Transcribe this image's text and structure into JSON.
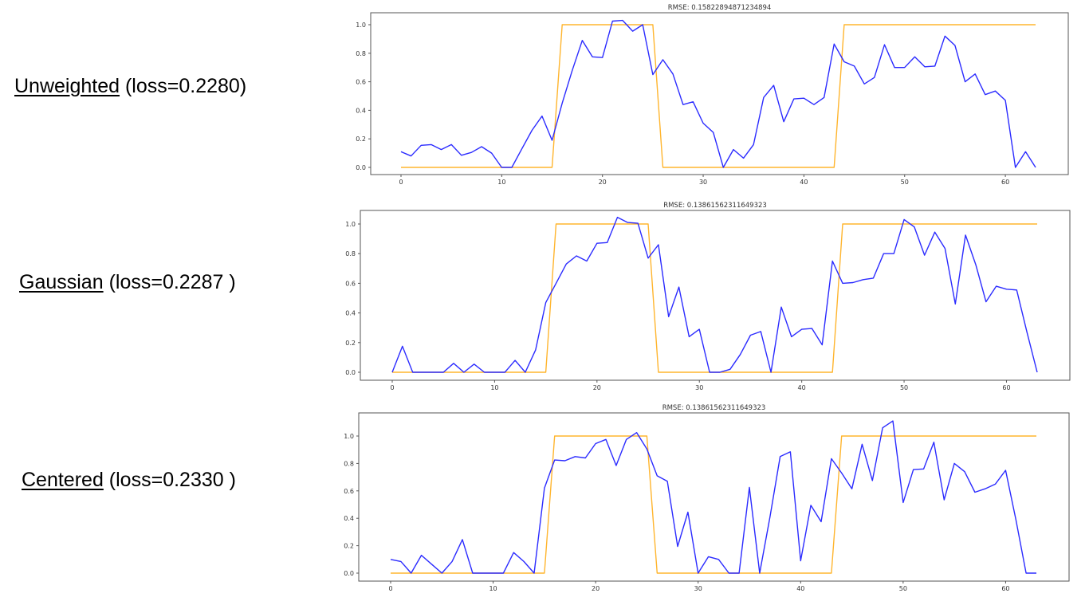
{
  "colors": {
    "predicted": "#2b2bff",
    "target": "#ffb52e",
    "axis": "#555555"
  },
  "labels": [
    {
      "name": "Unweighted",
      "suffix": " (loss=0.2280)"
    },
    {
      "name": "Gaussian",
      "suffix": " (loss=0.2287 )"
    },
    {
      "name": "Centered",
      "suffix": " (loss=0.2330 )"
    }
  ],
  "chart_data": [
    {
      "type": "line",
      "title": "RMSE: 0.15822894871234894",
      "xlabel": "",
      "ylabel": "",
      "xlim": [
        0,
        63
      ],
      "ylim": [
        0.0,
        1.04
      ],
      "xticks": [
        "0",
        "10",
        "20",
        "30",
        "40",
        "50",
        "60"
      ],
      "yticks": [
        "0.0",
        "0.2",
        "0.4",
        "0.6",
        "0.8",
        "1.0"
      ],
      "grid": false,
      "series": [
        {
          "color": "#2b2bff",
          "values": [
            0.11,
            0.08,
            0.155,
            0.16,
            0.125,
            0.16,
            0.085,
            0.105,
            0.145,
            0.1,
            0.0,
            0.0,
            0.13,
            0.26,
            0.36,
            0.19,
            0.45,
            0.68,
            0.89,
            0.775,
            0.77,
            1.025,
            1.03,
            0.955,
            1.0,
            0.65,
            0.755,
            0.655,
            0.44,
            0.46,
            0.31,
            0.245,
            0.0,
            0.125,
            0.065,
            0.16,
            0.49,
            0.575,
            0.32,
            0.48,
            0.485,
            0.44,
            0.49,
            0.865,
            0.74,
            0.71,
            0.585,
            0.63,
            0.86,
            0.7,
            0.7,
            0.775,
            0.705,
            0.71,
            0.92,
            0.855,
            0.6,
            0.655,
            0.51,
            0.535,
            0.47,
            0.0,
            0.11,
            0.0
          ]
        },
        {
          "color": "#ffb52e",
          "values": [
            0,
            0,
            0,
            0,
            0,
            0,
            0,
            0,
            0,
            0,
            0,
            0,
            0,
            0,
            0,
            0,
            1,
            1,
            1,
            1,
            1,
            1,
            1,
            1,
            1,
            1,
            0,
            0,
            0,
            0,
            0,
            0,
            0,
            0,
            0,
            0,
            0,
            0,
            0,
            0,
            0,
            0,
            0,
            0,
            1,
            1,
            1,
            1,
            1,
            1,
            1,
            1,
            1,
            1,
            1,
            1,
            1,
            1,
            1,
            1,
            1,
            1,
            1,
            1
          ]
        }
      ]
    },
    {
      "type": "line",
      "title": "RMSE: 0.13861562311649323",
      "xlabel": "",
      "ylabel": "",
      "xlim": [
        0,
        63
      ],
      "ylim": [
        0.0,
        1.05
      ],
      "xticks": [
        "0",
        "10",
        "20",
        "30",
        "40",
        "50",
        "60"
      ],
      "yticks": [
        "0.0",
        "0.2",
        "0.4",
        "0.6",
        "0.8",
        "1.0"
      ],
      "grid": false,
      "series": [
        {
          "color": "#2b2bff",
          "values": [
            0.0,
            0.175,
            0.0,
            0.0,
            0.0,
            0.0,
            0.06,
            0.0,
            0.055,
            0.0,
            0.0,
            0.0,
            0.08,
            0.0,
            0.15,
            0.47,
            0.6,
            0.73,
            0.785,
            0.75,
            0.87,
            0.875,
            1.045,
            1.01,
            1.005,
            0.77,
            0.86,
            0.375,
            0.575,
            0.24,
            0.29,
            0.0,
            0.0,
            0.02,
            0.12,
            0.25,
            0.275,
            0.0,
            0.44,
            0.24,
            0.29,
            0.295,
            0.185,
            0.75,
            0.6,
            0.605,
            0.625,
            0.635,
            0.8,
            0.8,
            1.03,
            0.98,
            0.79,
            0.945,
            0.835,
            0.46,
            0.925,
            0.725,
            0.475,
            0.58,
            0.56,
            0.555,
            0.27,
            0.0
          ]
        },
        {
          "color": "#ffb52e",
          "values": [
            0,
            0,
            0,
            0,
            0,
            0,
            0,
            0,
            0,
            0,
            0,
            0,
            0,
            0,
            0,
            0,
            1,
            1,
            1,
            1,
            1,
            1,
            1,
            1,
            1,
            1,
            0,
            0,
            0,
            0,
            0,
            0,
            0,
            0,
            0,
            0,
            0,
            0,
            0,
            0,
            0,
            0,
            0,
            0,
            1,
            1,
            1,
            1,
            1,
            1,
            1,
            1,
            1,
            1,
            1,
            1,
            1,
            1,
            1,
            1,
            1,
            1,
            1,
            1
          ]
        }
      ]
    },
    {
      "type": "line",
      "title": "RMSE: 0.13861562311649323",
      "xlabel": "",
      "ylabel": "",
      "xlim": [
        0,
        63
      ],
      "ylim": [
        0.0,
        1.12
      ],
      "xticks": [
        "0",
        "10",
        "20",
        "30",
        "40",
        "50",
        "60"
      ],
      "yticks": [
        "0.0",
        "0.2",
        "0.4",
        "0.6",
        "0.8",
        "1.0"
      ],
      "grid": false,
      "series": [
        {
          "color": "#2b2bff",
          "values": [
            0.1,
            0.085,
            0.0,
            0.13,
            0.065,
            0.0,
            0.085,
            0.245,
            0.0,
            0.0,
            0.0,
            0.0,
            0.15,
            0.085,
            0.0,
            0.62,
            0.825,
            0.82,
            0.85,
            0.84,
            0.945,
            0.975,
            0.785,
            0.975,
            1.025,
            0.905,
            0.71,
            0.67,
            0.195,
            0.445,
            0.0,
            0.12,
            0.1,
            0.0,
            0.0,
            0.625,
            0.0,
            0.405,
            0.85,
            0.885,
            0.09,
            0.495,
            0.375,
            0.835,
            0.73,
            0.615,
            0.94,
            0.675,
            1.06,
            1.11,
            0.515,
            0.755,
            0.76,
            0.955,
            0.535,
            0.8,
            0.74,
            0.59,
            0.615,
            0.65,
            0.75,
            0.39,
            0.0,
            0.0
          ]
        },
        {
          "color": "#ffb52e",
          "values": [
            0,
            0,
            0,
            0,
            0,
            0,
            0,
            0,
            0,
            0,
            0,
            0,
            0,
            0,
            0,
            0,
            1,
            1,
            1,
            1,
            1,
            1,
            1,
            1,
            1,
            1,
            0,
            0,
            0,
            0,
            0,
            0,
            0,
            0,
            0,
            0,
            0,
            0,
            0,
            0,
            0,
            0,
            0,
            0,
            1,
            1,
            1,
            1,
            1,
            1,
            1,
            1,
            1,
            1,
            1,
            1,
            1,
            1,
            1,
            1,
            1,
            1,
            1,
            1
          ]
        }
      ]
    }
  ]
}
